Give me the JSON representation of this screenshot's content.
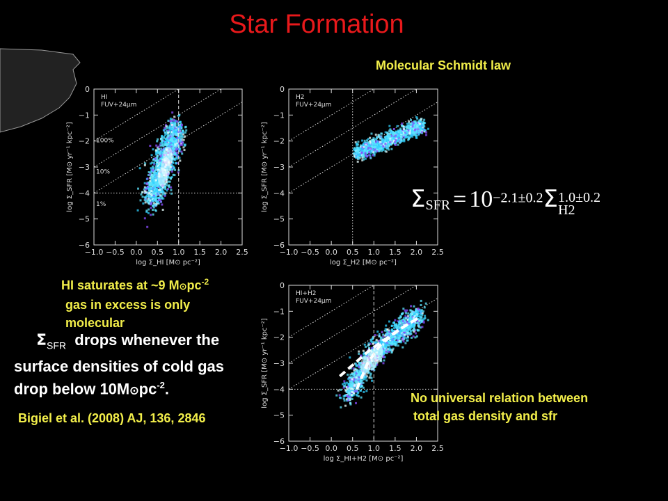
{
  "slide": {
    "title": "Star Formation",
    "molecular_label": "Molecular Schmidt law",
    "equation": {
      "lhs": "Σ",
      "lhs_sub": "SFR",
      "eq": "=",
      "base": "10",
      "exp": "−2.1±0.2",
      "sigma": "Σ",
      "sup": "1.0±0.2",
      "sub": "H2"
    },
    "hi_note_1a": "HI saturates at ~9 M",
    "hi_note_1b": "pc",
    "hi_note_1c": "-2",
    "hi_note_2": "gas in excess is only",
    "hi_note_3": "molecular",
    "drop_sigma": "Σ",
    "drop_sub": "SFR",
    "drop_1": "drop",
    "drop_1b": "s whenever the",
    "drop_2": "surface densities of cold gas",
    "drop_3a": "drop below 10M",
    "drop_3b": "pc",
    "drop_3c": "-2",
    "drop_3d": ".",
    "sun_symbol": "⊙",
    "reference": "Bigiel et al. (2008) AJ, 136, 2846",
    "no_universal_1": "No universal relation between",
    "no_universal_2": "total gas density and sfr"
  },
  "chart_data": [
    {
      "type": "heatmap",
      "panel_label": [
        "HI",
        "FUV+24μm"
      ],
      "xlabel": "log Σ_HI [M⊙ pc⁻²]",
      "ylabel": "log Σ_SFR [M⊙ yr⁻¹ kpc⁻²]",
      "xlim": [
        -1.0,
        2.5
      ],
      "ylim": [
        -6,
        0
      ],
      "x_ticks": [
        "−1.0",
        "−0.5",
        "0.0",
        "0.5",
        "1.0",
        "1.5",
        "2.0",
        "2.5"
      ],
      "y_ticks": [
        "0",
        "−1",
        "−2",
        "−3",
        "−4",
        "−5",
        "−6"
      ],
      "efficiency_labels": [
        "100%",
        "10%",
        "1%"
      ],
      "vertical_line_x": 1.0,
      "horizontal_line_y": -4.0
    },
    {
      "type": "heatmap",
      "panel_label": [
        "H2",
        "FUV+24μm"
      ],
      "xlabel": "log Σ_H2 [M⊙ pc⁻²]",
      "ylabel": "log Σ_SFR [M⊙ yr⁻¹ kpc⁻²]",
      "xlim": [
        -1.0,
        2.5
      ],
      "ylim": [
        -6,
        0
      ],
      "x_ticks": [
        "−1.0",
        "−0.5",
        "0.0",
        "0.5",
        "1.0",
        "1.5",
        "2.0",
        "2.5"
      ],
      "y_ticks": [
        "0",
        "−1",
        "−2",
        "−3",
        "−4",
        "−5",
        "−6"
      ],
      "vertical_line_x": 0.5
    },
    {
      "type": "heatmap",
      "panel_label": [
        "HI+H2",
        "FUV+24μm"
      ],
      "xlabel": "log Σ_HI+H2 [M⊙ pc⁻²]",
      "ylabel": "log Σ_SFR [M⊙ yr⁻¹ kpc⁻²]",
      "xlim": [
        -1.0,
        2.5
      ],
      "ylim": [
        -6,
        0
      ],
      "x_ticks": [
        "−1.0",
        "−0.5",
        "0.0",
        "0.5",
        "1.0",
        "1.5",
        "2.0",
        "2.5"
      ],
      "y_ticks": [
        "0",
        "−1",
        "−2",
        "−3",
        "−4",
        "−5",
        "−6"
      ],
      "vertical_line_x": 1.0,
      "horizontal_line_y": -4.0
    }
  ]
}
